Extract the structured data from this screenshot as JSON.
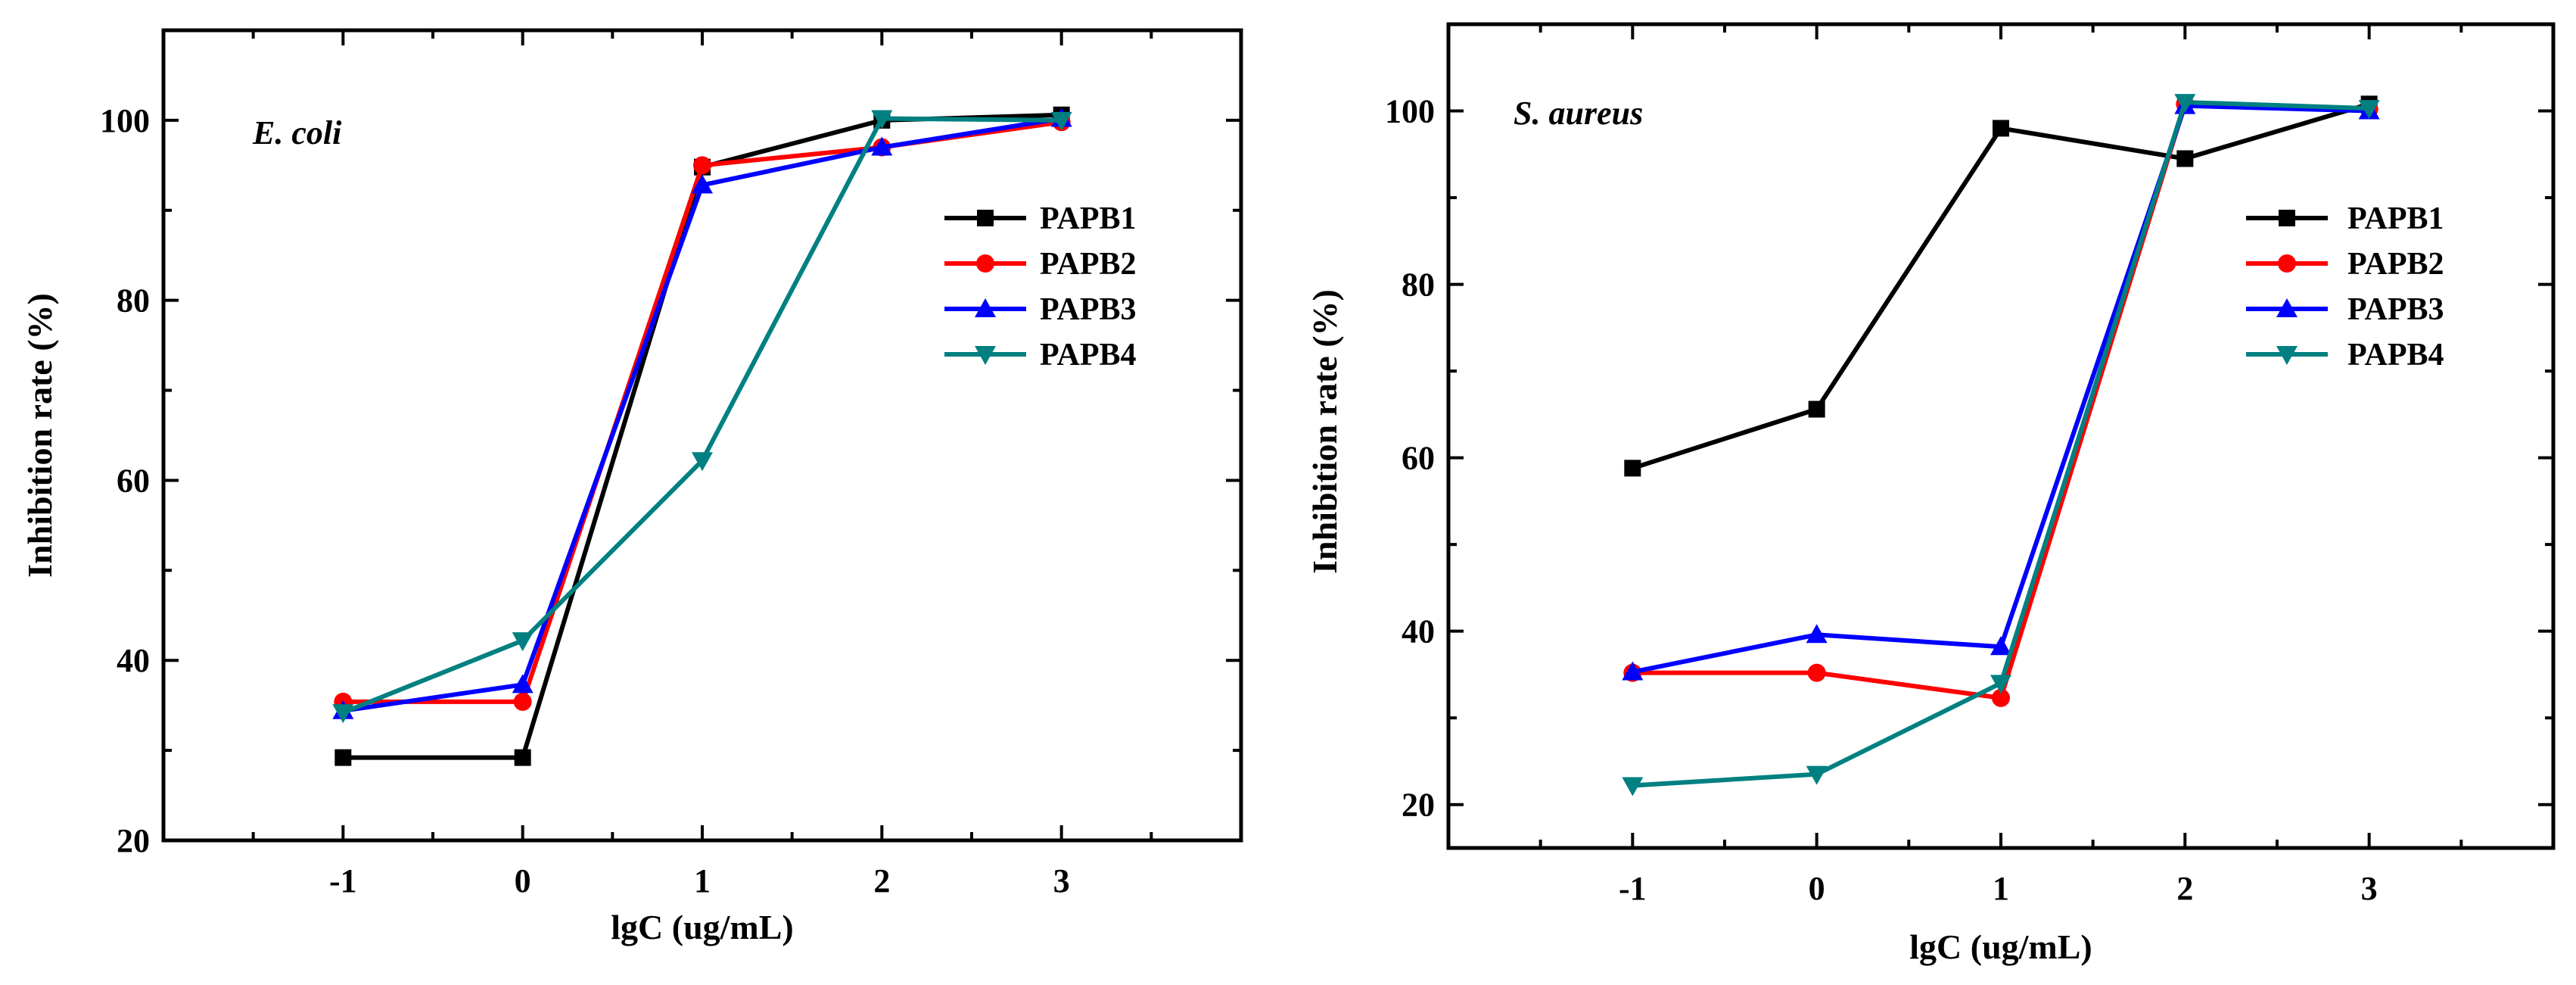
{
  "chart_data": [
    {
      "type": "line",
      "title": "E. coli",
      "xlabel": "lgC (ug/mL)",
      "ylabel": "Inhibition rate (%)",
      "x": [
        -1,
        0,
        1,
        2,
        3
      ],
      "xlim": [
        -2,
        4
      ],
      "ylim": [
        20,
        110
      ],
      "xticks": [
        "-1",
        "0",
        "1",
        "2",
        "3"
      ],
      "yticks": [
        "20",
        "40",
        "60",
        "80",
        "100"
      ],
      "legend_position": "right",
      "series": [
        {
          "name": "PAPB1",
          "color": "#000000",
          "marker": "square",
          "values": [
            29.2,
            29.2,
            94.8,
            100.0,
            100.6
          ]
        },
        {
          "name": "PAPB2",
          "color": "#ff0000",
          "marker": "circle",
          "values": [
            35.4,
            35.4,
            95.0,
            97.0,
            99.8
          ]
        },
        {
          "name": "PAPB3",
          "color": "#0000ff",
          "marker": "triangle-up",
          "values": [
            34.4,
            37.3,
            92.8,
            97.0,
            100.2
          ]
        },
        {
          "name": "PAPB4",
          "color": "#008080",
          "marker": "triangle-down",
          "values": [
            34.2,
            42.2,
            62.2,
            100.2,
            100.0
          ]
        }
      ]
    },
    {
      "type": "line",
      "title": "S. aureus",
      "xlabel": "lgC (ug/mL)",
      "ylabel": "Inhibition rate (%)",
      "x": [
        -1,
        0,
        1,
        2,
        3
      ],
      "xlim": [
        -2,
        4
      ],
      "ylim": [
        15,
        110
      ],
      "xticks": [
        "-1",
        "0",
        "1",
        "2",
        "3"
      ],
      "yticks": [
        "20",
        "40",
        "60",
        "80",
        "100"
      ],
      "legend_position": "right",
      "series": [
        {
          "name": "PAPB1",
          "color": "#000000",
          "marker": "square",
          "values": [
            58.8,
            65.6,
            98.0,
            94.5,
            100.8
          ]
        },
        {
          "name": "PAPB2",
          "color": "#ff0000",
          "marker": "circle",
          "values": [
            35.2,
            35.2,
            32.3,
            100.8,
            100.2
          ]
        },
        {
          "name": "PAPB3",
          "color": "#0000ff",
          "marker": "triangle-up",
          "values": [
            35.3,
            39.6,
            38.2,
            100.6,
            100.0
          ]
        },
        {
          "name": "PAPB4",
          "color": "#008080",
          "marker": "triangle-down",
          "values": [
            22.2,
            23.5,
            34.0,
            101.0,
            100.3
          ]
        }
      ]
    }
  ]
}
